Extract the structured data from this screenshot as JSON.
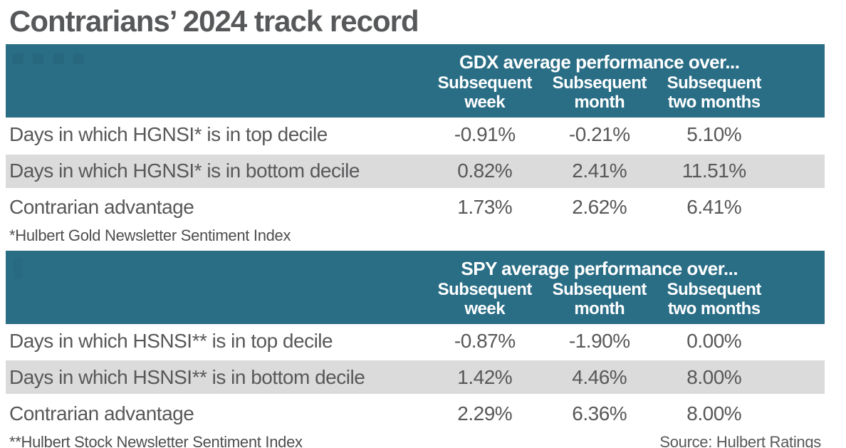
{
  "title": "Contrarians’ 2024 track record",
  "source": "Source: Hulbert Ratings",
  "colors": {
    "accent_teal": "#2a6e86",
    "row_alt_gray": "#dbdbdb",
    "text_gray": "#58585a"
  },
  "tables": [
    {
      "header": "GDX average performance over...",
      "columns": [
        {
          "line1": "Subsequent",
          "line2": "week"
        },
        {
          "line1": "Subsequent",
          "line2": "month"
        },
        {
          "line1": "Subsequent",
          "line2": "two months"
        }
      ],
      "rows": [
        {
          "label": "Days in which HGNSI* is in top decile",
          "values": [
            "-0.91%",
            "-0.21%",
            "5.10%"
          ]
        },
        {
          "label": "Days in which HGNSI* is in bottom decile",
          "values": [
            "0.82%",
            "2.41%",
            "11.51%"
          ]
        },
        {
          "label": "Contrarian advantage",
          "values": [
            "1.73%",
            "2.62%",
            "6.41%"
          ]
        }
      ],
      "footnote": "*Hulbert Gold Newsletter Sentiment Index"
    },
    {
      "header": "SPY average performance over...",
      "columns": [
        {
          "line1": "Subsequent",
          "line2": "week"
        },
        {
          "line1": "Subsequent",
          "line2": "month"
        },
        {
          "line1": "Subsequent",
          "line2": "two months"
        }
      ],
      "rows": [
        {
          "label": "Days in which HSNSI** is in top decile",
          "values": [
            "-0.87%",
            "-1.90%",
            "0.00%"
          ]
        },
        {
          "label": "Days in which HSNSI** is in bottom decile",
          "values": [
            "1.42%",
            "4.46%",
            "8.00%"
          ]
        },
        {
          "label": "Contrarian advantage",
          "values": [
            "2.29%",
            "6.36%",
            "8.00%"
          ]
        }
      ],
      "footnote": "**Hulbert Stock Newsletter Sentiment Index"
    }
  ],
  "chart_data": [
    {
      "type": "table",
      "title": "GDX average performance over...",
      "columns": [
        "Subsequent week",
        "Subsequent month",
        "Subsequent two months"
      ],
      "row_labels": [
        "Days in which HGNSI* is in top decile",
        "Days in which HGNSI* is in bottom decile",
        "Contrarian advantage"
      ],
      "values_pct": [
        [
          -0.91,
          -0.21,
          5.1
        ],
        [
          0.82,
          2.41,
          11.51
        ],
        [
          1.73,
          2.62,
          6.41
        ]
      ],
      "footnote": "*Hulbert Gold Newsletter Sentiment Index"
    },
    {
      "type": "table",
      "title": "SPY average performance over...",
      "columns": [
        "Subsequent week",
        "Subsequent month",
        "Subsequent two months"
      ],
      "row_labels": [
        "Days in which HSNSI** is in top decile",
        "Days in which HSNSI** is in bottom decile",
        "Contrarian advantage"
      ],
      "values_pct": [
        [
          -0.87,
          -1.9,
          0.0
        ],
        [
          1.42,
          4.46,
          8.0
        ],
        [
          2.29,
          6.36,
          8.0
        ]
      ],
      "footnote": "**Hulbert Stock Newsletter Sentiment Index"
    }
  ]
}
